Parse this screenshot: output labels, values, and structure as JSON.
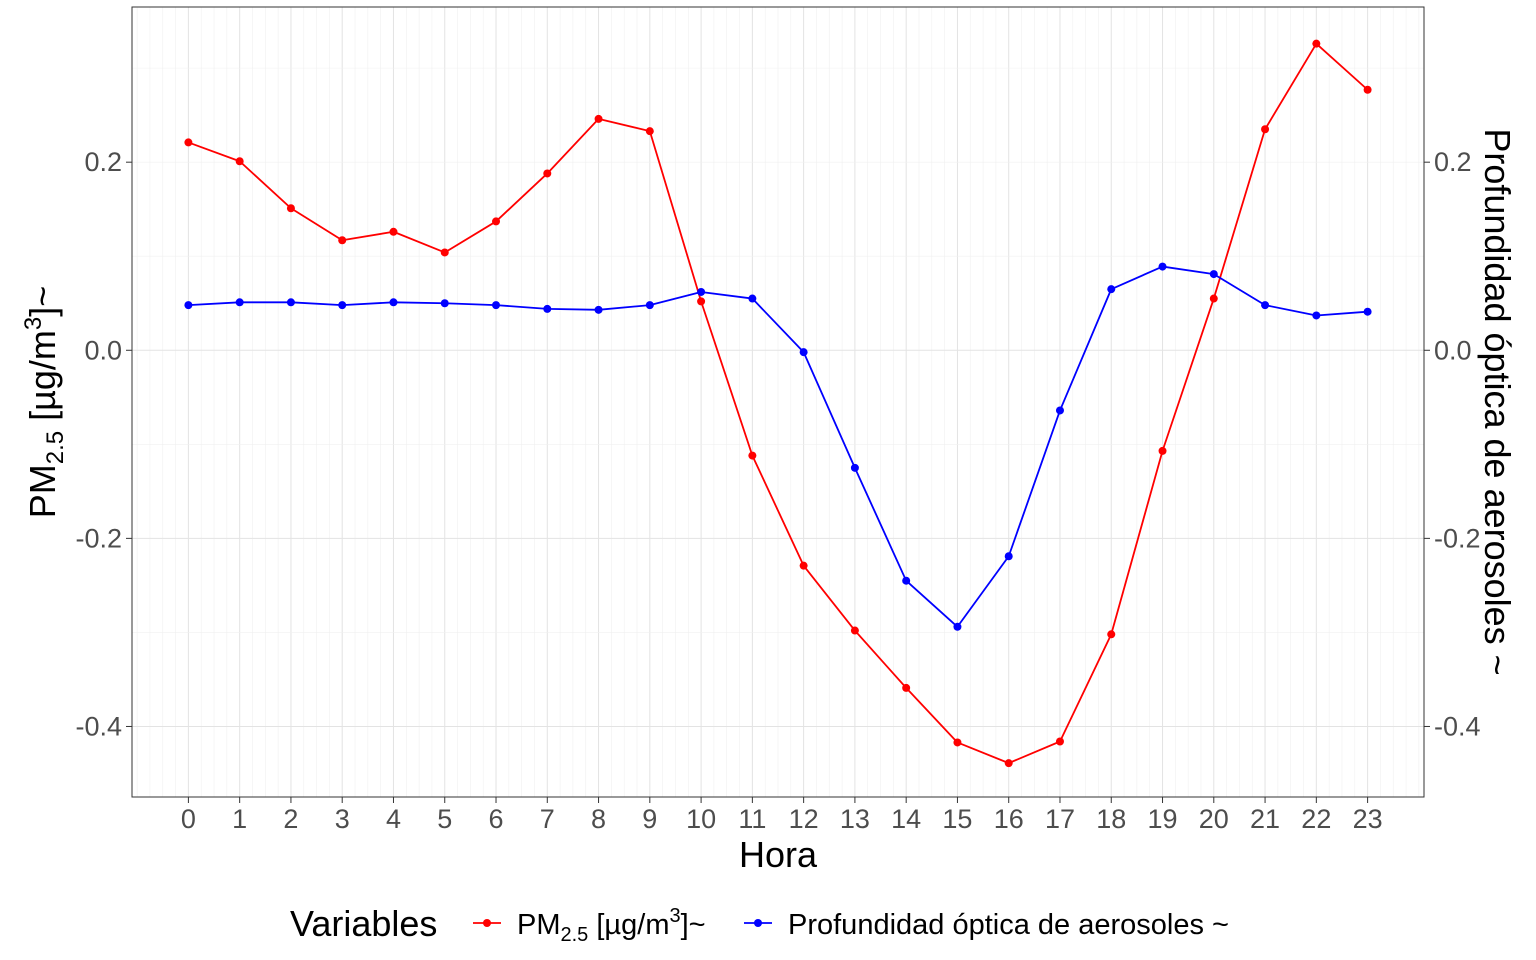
{
  "chart_data": {
    "type": "line",
    "x": [
      0,
      1,
      2,
      3,
      4,
      5,
      6,
      7,
      8,
      9,
      10,
      11,
      12,
      13,
      14,
      15,
      16,
      17,
      18,
      19,
      20,
      21,
      22,
      23
    ],
    "xlabel": "Hora",
    "ylabel": {
      "base": "PM",
      "sub": "2.5",
      "unit_pre": " [µg/m",
      "sup": "3",
      "unit_post": "]~"
    },
    "y2label": "Profundidad óptica de aerosoles ~",
    "yticks": [
      "0.2",
      "0.0",
      "-0.2",
      "-0.4"
    ],
    "ytick_values": [
      0.2,
      0.0,
      -0.2,
      -0.4
    ],
    "y2ticks": [
      "0.2",
      "0.0",
      "-0.2",
      "-0.4"
    ],
    "ylim": [
      -0.475,
      0.365
    ],
    "grid": true,
    "legend_position": "bottom",
    "legend_title": "Variables",
    "series": [
      {
        "name": "PM2.5 [µg/m3]~",
        "name_parts": {
          "base": "PM",
          "sub": "2.5",
          "unit_pre": " [µg/m",
          "sup": "3",
          "unit_post": "]~"
        },
        "color": "#ff0000",
        "values": [
          0.221,
          0.201,
          0.151,
          0.117,
          0.126,
          0.104,
          0.137,
          0.188,
          0.246,
          0.233,
          0.052,
          -0.112,
          -0.229,
          -0.298,
          -0.359,
          -0.417,
          -0.439,
          -0.416,
          -0.302,
          -0.107,
          0.055,
          0.235,
          0.326,
          0.277
        ]
      },
      {
        "name": "Profundidad óptica de aerosoles ~",
        "color": "#0000ff",
        "values": [
          0.048,
          0.051,
          0.051,
          0.048,
          0.051,
          0.05,
          0.048,
          0.044,
          0.043,
          0.048,
          0.062,
          0.055,
          -0.002,
          -0.125,
          -0.245,
          -0.294,
          -0.219,
          -0.064,
          0.065,
          0.089,
          0.081,
          0.048,
          0.037,
          0.041
        ]
      }
    ]
  }
}
